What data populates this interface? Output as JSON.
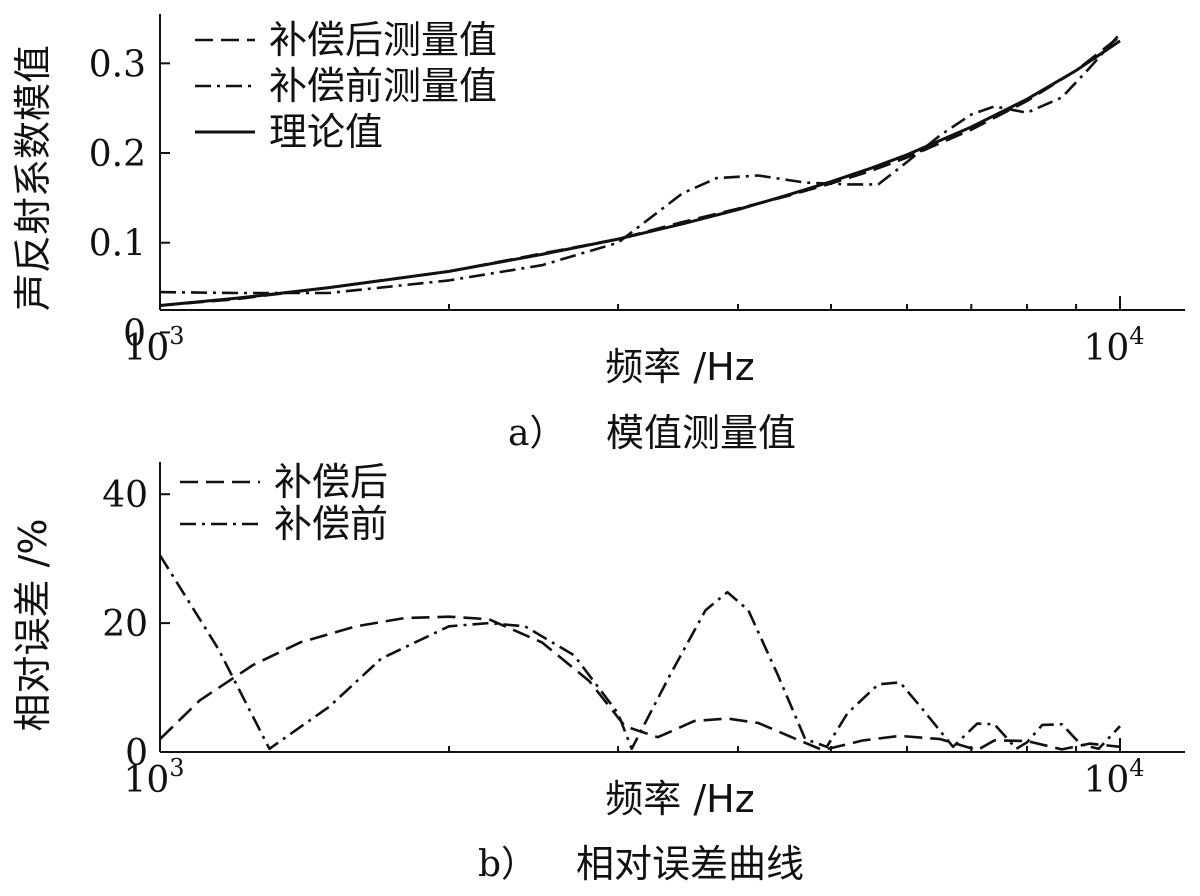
{
  "chart_data": [
    {
      "type": "line",
      "caption_label": "a）",
      "caption_title": "模值测量值",
      "xlabel": "频率 /Hz",
      "ylabel": "声反射系数模值",
      "x_scale": "log",
      "xlim": [
        1000,
        10000
      ],
      "ylim": [
        0.025,
        0.355
      ],
      "x_ticks": [
        1000,
        10000
      ],
      "x_ticklabels": [
        {
          "base": "10",
          "exp": "3"
        },
        {
          "base": "10",
          "exp": "4"
        }
      ],
      "y_ticks": [
        0.0,
        0.1,
        0.2,
        0.3
      ],
      "y_ticklabels": [
        "0",
        "0.1",
        "0.2",
        "0.3"
      ],
      "legend_position": "top-left",
      "series": [
        {
          "name": "补偿后测量值",
          "style": "dashed",
          "x": [
            1000,
            1200,
            1500,
            2000,
            2500,
            3000,
            3500,
            4000,
            4500,
            5000,
            5500,
            6000,
            7000,
            8000,
            9000,
            10000
          ],
          "y": [
            0.03,
            0.037,
            0.05,
            0.068,
            0.088,
            0.104,
            0.123,
            0.138,
            0.152,
            0.166,
            0.18,
            0.195,
            0.226,
            0.258,
            0.292,
            0.33
          ]
        },
        {
          "name": "补偿前测量值",
          "style": "dashdot",
          "x": [
            1000,
            1200,
            1500,
            2000,
            2500,
            3000,
            3500,
            3800,
            4200,
            4700,
            5200,
            5600,
            6000,
            6500,
            7000,
            7400,
            8000,
            8700,
            9300,
            10000
          ],
          "y": [
            0.045,
            0.044,
            0.044,
            0.058,
            0.075,
            0.1,
            0.155,
            0.172,
            0.175,
            0.167,
            0.165,
            0.165,
            0.19,
            0.22,
            0.243,
            0.252,
            0.245,
            0.262,
            0.295,
            0.333
          ]
        },
        {
          "name": "理论值",
          "style": "solid",
          "x": [
            1000,
            1200,
            1500,
            2000,
            2500,
            3000,
            3500,
            4000,
            4500,
            5000,
            5500,
            6000,
            7000,
            8000,
            9000,
            10000
          ],
          "y": [
            0.03,
            0.038,
            0.05,
            0.068,
            0.087,
            0.104,
            0.121,
            0.137,
            0.153,
            0.168,
            0.183,
            0.198,
            0.229,
            0.26,
            0.292,
            0.325
          ]
        }
      ]
    },
    {
      "type": "line",
      "caption_label": "b）",
      "caption_title": "相对误差曲线",
      "xlabel": "频率 /Hz",
      "ylabel": "相对误差 /%",
      "x_scale": "log",
      "xlim": [
        1000,
        10000
      ],
      "ylim": [
        0,
        45
      ],
      "x_ticks": [
        1000,
        10000
      ],
      "x_ticklabels": [
        {
          "base": "10",
          "exp": "3"
        },
        {
          "base": "10",
          "exp": "4"
        }
      ],
      "y_ticks": [
        0,
        20,
        40
      ],
      "y_ticklabels": [
        "0",
        "20",
        "40"
      ],
      "legend_position": "top-left",
      "series": [
        {
          "name": "补偿后",
          "style": "dashed",
          "x": [
            1000,
            1100,
            1250,
            1400,
            1600,
            1800,
            2000,
            2200,
            2500,
            2800,
            3050,
            3300,
            3600,
            3900,
            4200,
            4600,
            4900,
            5400,
            5900,
            6500,
            7100,
            7400,
            8000,
            8700,
            9300,
            10000
          ],
          "y": [
            2,
            8,
            13.5,
            17,
            19.5,
            20.8,
            21,
            20.6,
            17,
            11,
            4,
            2.3,
            4.8,
            5.2,
            4.5,
            2,
            0.3,
            1.8,
            2.5,
            2,
            0.3,
            1.8,
            1.7,
            0.4,
            1.3,
            0.8
          ]
        },
        {
          "name": "补偿前",
          "style": "dashdot",
          "x": [
            1000,
            1150,
            1300,
            1500,
            1700,
            2000,
            2200,
            2400,
            2700,
            3000,
            3100,
            3400,
            3700,
            3900,
            4100,
            4400,
            4700,
            4950,
            5200,
            5600,
            5900,
            6200,
            6700,
            7100,
            7400,
            7800,
            8000,
            8300,
            8700,
            9100,
            9500,
            10000
          ],
          "y": [
            30.5,
            16,
            0.5,
            7,
            14.5,
            19.5,
            20,
            19.5,
            15,
            6,
            0.5,
            12,
            22,
            24.8,
            22,
            12,
            2,
            0.8,
            6,
            10.5,
            10.8,
            7,
            0.8,
            4.4,
            4.3,
            0.5,
            1.5,
            4.2,
            4.3,
            1.2,
            0.5,
            4
          ]
        }
      ]
    }
  ]
}
